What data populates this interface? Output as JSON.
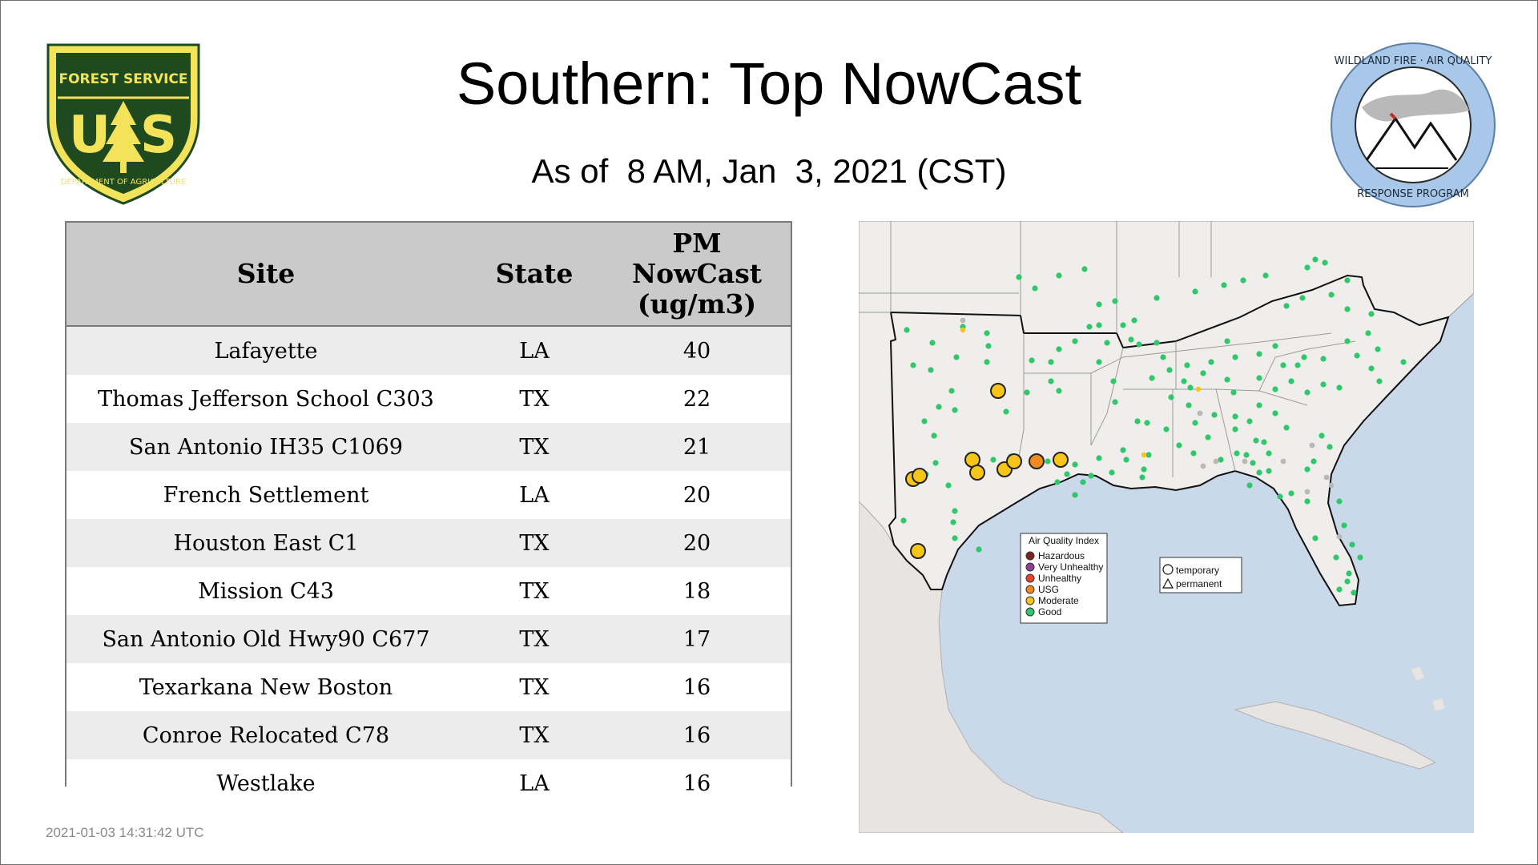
{
  "header": {
    "title": "Southern: Top NowCast",
    "subtitle": "As of  8 AM, Jan  3, 2021 (CST)"
  },
  "logos": {
    "left": {
      "icon": "forest-service-shield-icon",
      "top_text": "FOREST SERVICE",
      "letters": "US",
      "bottom_text": "DEPARTMENT OF AGRICULTURE",
      "color": "#1f4a20",
      "accent": "#f3e35a"
    },
    "right": {
      "icon": "wildland-fire-air-quality-seal-icon",
      "top_text": "WILDLAND FIRE · AIR QUALITY",
      "bottom_text": "RESPONSE PROGRAM",
      "color": "#a9c7e8"
    }
  },
  "table": {
    "headers": {
      "site": "Site",
      "state": "State",
      "pm_line1": "PM",
      "pm_line2": "NowCast",
      "pm_line3": "(ug/m3)"
    },
    "rows": [
      {
        "site": "Lafayette",
        "state": "LA",
        "value": "40"
      },
      {
        "site": "Thomas Jefferson School C303",
        "state": "TX",
        "value": "22"
      },
      {
        "site": "San Antonio IH35 C1069",
        "state": "TX",
        "value": "21"
      },
      {
        "site": "French Settlement",
        "state": "LA",
        "value": "20"
      },
      {
        "site": "Houston East C1",
        "state": "TX",
        "value": "20"
      },
      {
        "site": "Mission C43",
        "state": "TX",
        "value": "18"
      },
      {
        "site": "San Antonio Old Hwy90 C677",
        "state": "TX",
        "value": "17"
      },
      {
        "site": "Texarkana New Boston",
        "state": "TX",
        "value": "16"
      },
      {
        "site": "Conroe Relocated C78",
        "state": "TX",
        "value": "16"
      },
      {
        "site": "Westlake",
        "state": "LA",
        "value": "16"
      }
    ]
  },
  "map": {
    "legend": {
      "title": "Air Quality Index",
      "items": [
        {
          "label": "Hazardous",
          "color": "#7e2420"
        },
        {
          "label": "Very Unhealthy",
          "color": "#8f3f97"
        },
        {
          "label": "Unhealthy",
          "color": "#e8432b"
        },
        {
          "label": "USG",
          "color": "#f28a1f"
        },
        {
          "label": "Moderate",
          "color": "#f5c518"
        },
        {
          "label": "Good",
          "color": "#2fc76a"
        }
      ]
    },
    "shape_legend": {
      "temporary": "temporary",
      "permanent": "permanent"
    },
    "colors": {
      "water": "#c9d9ea",
      "land": "#efeeec",
      "border": "#111111",
      "no_data": "#b8b8b8"
    }
  },
  "footer": {
    "timestamp": "2021-01-03 14:31:42 UTC"
  }
}
